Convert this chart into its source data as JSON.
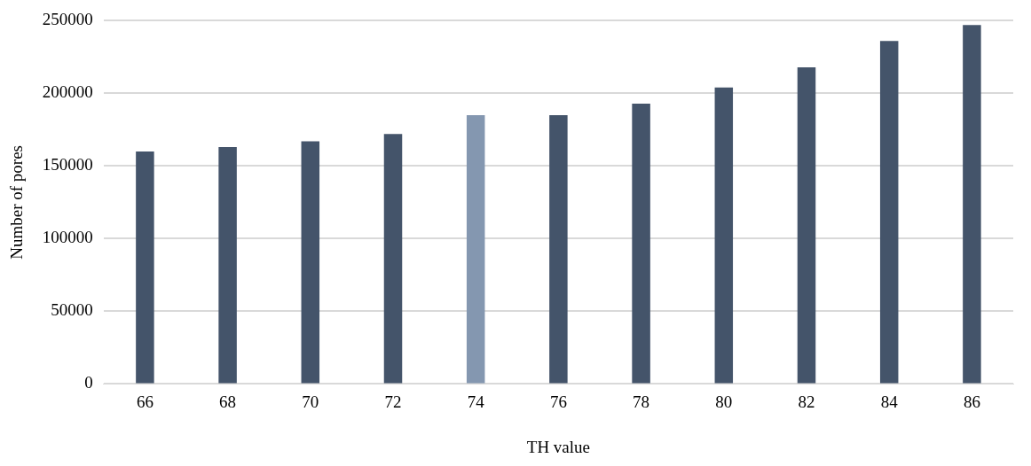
{
  "chart_data": {
    "type": "bar",
    "xlabel": "TH value",
    "ylabel": "Number of pores",
    "categories": [
      "66",
      "68",
      "70",
      "72",
      "74",
      "76",
      "78",
      "80",
      "82",
      "84",
      "86"
    ],
    "values": [
      160000,
      163000,
      167000,
      172000,
      185000,
      185000,
      193000,
      204000,
      218000,
      236000,
      247000
    ],
    "colors": [
      "#44546a",
      "#44546a",
      "#44546a",
      "#44546a",
      "#8497b0",
      "#44546a",
      "#44546a",
      "#44546a",
      "#44546a",
      "#44546a",
      "#44546a"
    ],
    "ylim": [
      0,
      250000
    ],
    "yticks": [
      0,
      50000,
      100000,
      150000,
      200000,
      250000
    ],
    "grid": "y",
    "legend": false
  }
}
